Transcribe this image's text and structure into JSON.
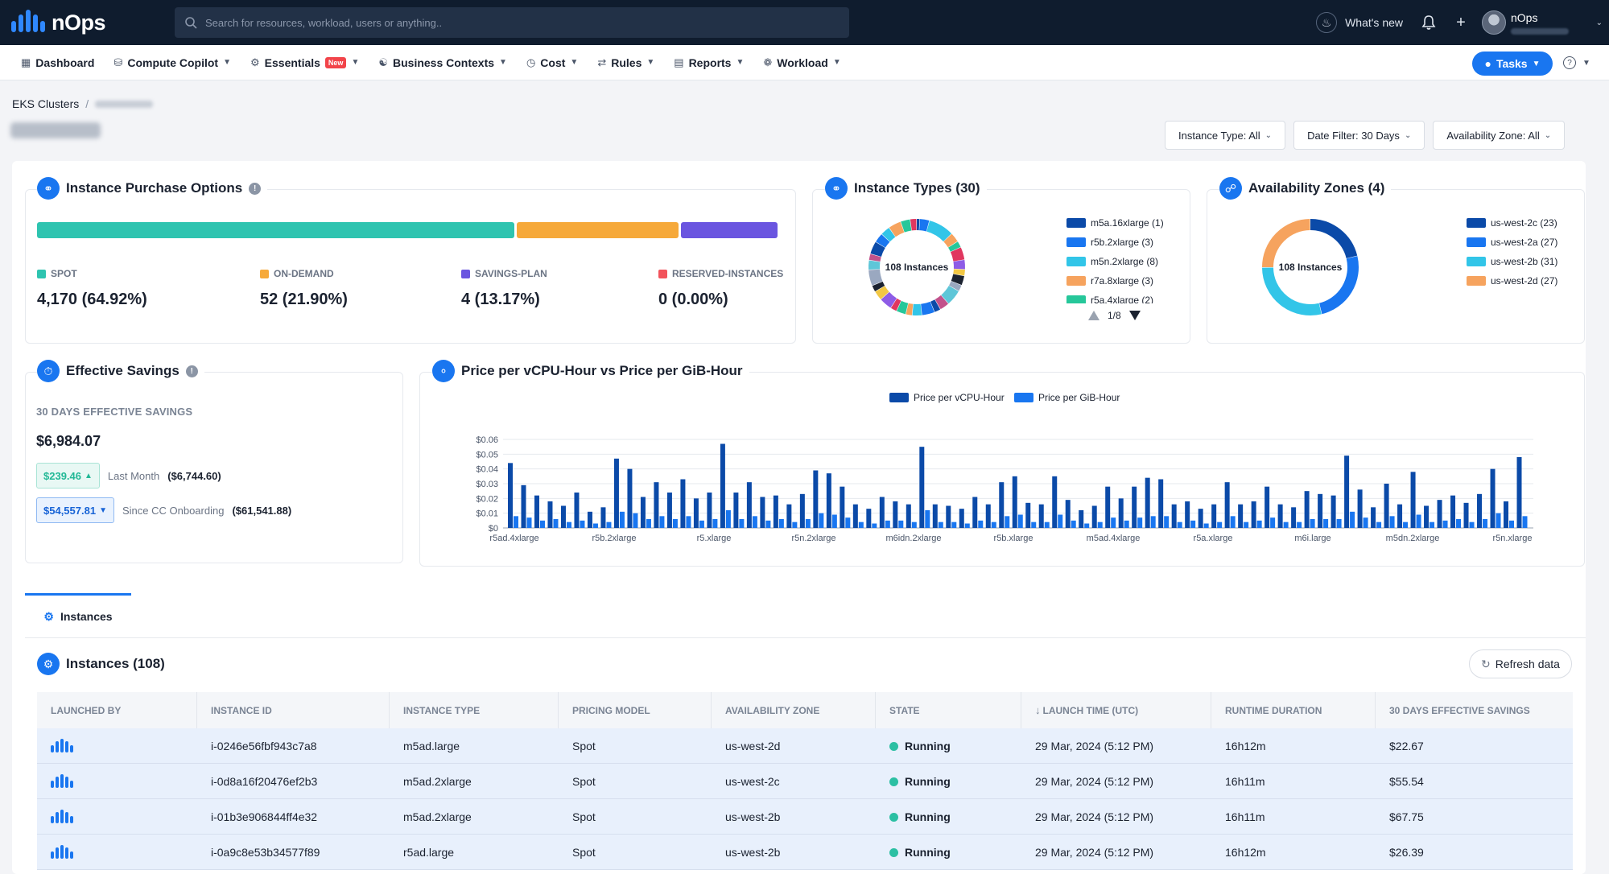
{
  "brand": {
    "name": "nOps"
  },
  "search": {
    "placeholder": "Search for resources, workload, users or anything.."
  },
  "topbar": {
    "whats_new": "What's new",
    "user_name": "nOps"
  },
  "nav": {
    "items": [
      {
        "label": "Dashboard",
        "icon": "grid-icon"
      },
      {
        "label": "Compute Copilot",
        "icon": "copilot-icon"
      },
      {
        "label": "Essentials",
        "icon": "essentials-icon",
        "badge": "New"
      },
      {
        "label": "Business Contexts",
        "icon": "contexts-icon"
      },
      {
        "label": "Cost",
        "icon": "cost-icon"
      },
      {
        "label": "Rules",
        "icon": "rules-icon"
      },
      {
        "label": "Reports",
        "icon": "reports-icon"
      },
      {
        "label": "Workload",
        "icon": "workload-icon"
      }
    ],
    "tasks": "Tasks"
  },
  "breadcrumb": {
    "root": "EKS Clusters",
    "sep": "/"
  },
  "filters": {
    "instance_type": "Instance Type: All",
    "date": "Date Filter: 30 Days",
    "zone": "Availability Zone: All"
  },
  "purchase": {
    "title": "Instance Purchase Options",
    "options": [
      {
        "label": "SPOT",
        "value": "4,170 (64.92%)",
        "color": "#2ec4b0",
        "share": 64.92
      },
      {
        "label": "ON-DEMAND",
        "value": "52 (21.90%)",
        "color": "#f6a93a",
        "share": 21.9
      },
      {
        "label": "SAVINGS-PLAN",
        "value": "4 (13.17%)",
        "color": "#6a55e0",
        "share": 13.17
      },
      {
        "label": "RESERVED-INSTANCES",
        "value": "0 (0.00%)",
        "color": "#f2535b",
        "share": 0
      }
    ]
  },
  "instance_types": {
    "title": "Instance Types (30)",
    "center": "108 Instances",
    "legend": [
      {
        "label": "m5a.16xlarge (1)",
        "color": "#0b4aa8"
      },
      {
        "label": "r5b.2xlarge (3)",
        "color": "#1976f0"
      },
      {
        "label": "m5n.2xlarge (8)",
        "color": "#32c5e8"
      },
      {
        "label": "r7a.8xlarge (3)",
        "color": "#f6a35e"
      },
      {
        "label": "r5a.4xlarge (2)",
        "color": "#26c79a"
      }
    ],
    "page": "1/8"
  },
  "zones": {
    "title": "Availability Zones (4)",
    "center": "108 Instances",
    "legend": [
      {
        "label": "us-west-2c (23)",
        "color": "#0b4aa8",
        "count": 23
      },
      {
        "label": "us-west-2a (27)",
        "color": "#1976f0",
        "count": 27
      },
      {
        "label": "us-west-2b (31)",
        "color": "#32c5e8",
        "count": 31
      },
      {
        "label": "us-west-2d (27)",
        "color": "#f6a35e",
        "count": 27
      }
    ]
  },
  "savings": {
    "title": "Effective Savings",
    "label": "30 DAYS EFFECTIVE SAVINGS",
    "value": "$6,984.07",
    "last_month_chip": "$239.46",
    "last_month_label": "Last Month",
    "last_month_value": "($6,744.60)",
    "onboarding_chip": "$54,557.81",
    "onboarding_label": "Since CC Onboarding",
    "onboarding_value": "($61,541.88)"
  },
  "chart_data": {
    "type": "bar",
    "title": "Price per vCPU-Hour vs Price per GiB-Hour",
    "ylim": [
      0,
      0.06
    ],
    "yticks": [
      "$0",
      "$0.01",
      "$0.02",
      "$0.03",
      "$0.04",
      "$0.05",
      "$0.06"
    ],
    "xticks": [
      "r5ad.4xlarge",
      "r5b.2xlarge",
      "r5.xlarge",
      "r5n.2xlarge",
      "m6idn.2xlarge",
      "r5b.xlarge",
      "m5ad.4xlarge",
      "r5a.xlarge",
      "m6i.large",
      "m5dn.2xlarge",
      "r5n.xlarge"
    ],
    "series": [
      {
        "name": "Price per vCPU-Hour",
        "color": "#0b4aa8",
        "values": [
          0.044,
          0.029,
          0.022,
          0.018,
          0.015,
          0.024,
          0.011,
          0.014,
          0.047,
          0.04,
          0.021,
          0.031,
          0.024,
          0.033,
          0.02,
          0.024,
          0.057,
          0.024,
          0.031,
          0.021,
          0.022,
          0.016,
          0.023,
          0.039,
          0.037,
          0.028,
          0.016,
          0.013,
          0.021,
          0.018,
          0.016,
          0.055,
          0.016,
          0.015,
          0.013,
          0.021,
          0.016,
          0.031,
          0.035,
          0.017,
          0.016,
          0.035,
          0.019,
          0.012,
          0.015,
          0.028,
          0.02,
          0.028,
          0.034,
          0.033,
          0.016,
          0.018,
          0.013,
          0.016,
          0.031,
          0.016,
          0.018,
          0.028,
          0.016,
          0.014,
          0.025,
          0.023,
          0.022,
          0.049,
          0.026,
          0.014,
          0.03,
          0.016,
          0.038,
          0.015,
          0.019,
          0.022,
          0.017,
          0.023,
          0.04,
          0.018,
          0.048
        ]
      },
      {
        "name": "Price per GiB-Hour",
        "color": "#1976f0",
        "values": [
          0.008,
          0.007,
          0.005,
          0.006,
          0.004,
          0.005,
          0.003,
          0.004,
          0.011,
          0.01,
          0.006,
          0.008,
          0.006,
          0.008,
          0.005,
          0.006,
          0.012,
          0.006,
          0.008,
          0.005,
          0.006,
          0.004,
          0.006,
          0.01,
          0.009,
          0.007,
          0.004,
          0.003,
          0.005,
          0.005,
          0.004,
          0.012,
          0.004,
          0.004,
          0.003,
          0.005,
          0.004,
          0.008,
          0.009,
          0.004,
          0.004,
          0.009,
          0.005,
          0.003,
          0.004,
          0.007,
          0.005,
          0.007,
          0.008,
          0.008,
          0.004,
          0.005,
          0.003,
          0.004,
          0.008,
          0.004,
          0.005,
          0.007,
          0.004,
          0.004,
          0.006,
          0.006,
          0.006,
          0.011,
          0.007,
          0.004,
          0.008,
          0.004,
          0.009,
          0.004,
          0.005,
          0.006,
          0.004,
          0.006,
          0.01,
          0.005,
          0.008
        ]
      }
    ]
  },
  "tabs": {
    "instances": "Instances"
  },
  "instances": {
    "title": "Instances (108)",
    "refresh": "Refresh data",
    "columns": [
      "LAUNCHED BY",
      "INSTANCE ID",
      "INSTANCE TYPE",
      "PRICING MODEL",
      "AVAILABILITY ZONE",
      "STATE",
      "LAUNCH TIME (UTC)",
      "RUNTIME DURATION",
      "30 DAYS EFFECTIVE SAVINGS"
    ],
    "rows": [
      {
        "id": "i-0246e56fbf943c7a8",
        "type": "m5ad.large",
        "pricing": "Spot",
        "zone": "us-west-2d",
        "state": "Running",
        "launch": "29 Mar, 2024 (5:12 PM)",
        "runtime": "16h12m",
        "savings": "$22.67"
      },
      {
        "id": "i-0d8a16f20476ef2b3",
        "type": "m5ad.2xlarge",
        "pricing": "Spot",
        "zone": "us-west-2c",
        "state": "Running",
        "launch": "29 Mar, 2024 (5:12 PM)",
        "runtime": "16h11m",
        "savings": "$55.54"
      },
      {
        "id": "i-01b3e906844ff4e32",
        "type": "m5ad.2xlarge",
        "pricing": "Spot",
        "zone": "us-west-2b",
        "state": "Running",
        "launch": "29 Mar, 2024 (5:12 PM)",
        "runtime": "16h11m",
        "savings": "$67.75"
      },
      {
        "id": "i-0a9c8e53b34577f89",
        "type": "r5ad.large",
        "pricing": "Spot",
        "zone": "us-west-2b",
        "state": "Running",
        "launch": "29 Mar, 2024 (5:12 PM)",
        "runtime": "16h12m",
        "savings": "$26.39"
      }
    ]
  }
}
